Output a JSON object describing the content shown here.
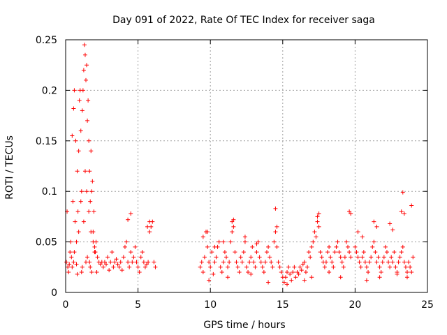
{
  "chart_data": {
    "type": "scatter",
    "title": "Day 091 of 2022, Rate Of TEC Index for receiver saga",
    "xlabel": "GPS time / hours",
    "ylabel": "ROTI / TECUs",
    "xlim": [
      0,
      25
    ],
    "ylim": [
      0,
      0.25
    ],
    "x_ticks": [
      0,
      5,
      10,
      15,
      20,
      25
    ],
    "x_tick_labels": [
      "0",
      "5",
      "10",
      "15",
      "20",
      "25"
    ],
    "y_ticks": [
      0,
      0.05,
      0.1,
      0.15,
      0.2,
      0.25
    ],
    "y_tick_labels": [
      "0",
      "0.05",
      "0.1",
      "0.15",
      "0.2",
      "0.25"
    ],
    "grid": true,
    "marker": "plus",
    "colors": {
      "points": "#ff0000",
      "grid": "#a0a0a0",
      "frame": "#000000"
    },
    "series": [
      {
        "x": [
          0.05,
          0.15,
          0.25,
          0.3,
          0.4,
          0.45,
          0.5,
          0.55,
          0.6,
          0.65,
          0.7,
          0.75,
          0.8,
          0.85,
          0.9,
          0.95,
          1.0,
          1.05,
          1.1,
          1.15,
          1.2,
          1.25,
          1.3,
          1.35,
          1.4,
          1.45,
          1.5,
          1.55,
          1.6,
          1.65,
          1.7,
          1.75,
          1.8,
          1.85,
          1.9,
          1.95,
          2.0,
          2.1,
          2.2,
          2.3,
          2.4,
          2.5,
          2.6,
          2.7,
          2.8,
          2.9,
          3.0,
          3.1,
          3.2,
          3.3,
          3.4,
          3.5,
          3.6,
          3.7,
          3.8,
          3.9,
          4.0,
          4.1,
          4.2,
          4.3,
          4.4,
          4.5,
          4.6,
          4.7,
          4.8,
          4.9,
          5.0,
          5.1,
          5.2,
          5.3,
          5.4,
          5.5,
          5.6,
          5.7,
          5.8,
          5.9,
          6.0,
          6.1,
          6.2,
          0.1,
          0.35,
          0.6,
          0.9,
          1.05,
          1.25,
          1.35,
          1.45,
          1.6,
          1.75,
          1.9,
          2.05,
          0.55,
          0.75,
          1.15,
          1.5,
          1.65,
          1.8,
          2.0,
          0.2,
          0.45,
          0.8,
          1.1,
          1.4,
          1.7,
          2.15,
          4.3,
          4.5,
          5.65,
          5.8
        ],
        "y": [
          0.03,
          0.025,
          0.028,
          0.04,
          0.035,
          0.155,
          0.09,
          0.182,
          0.2,
          0.07,
          0.15,
          0.05,
          0.12,
          0.08,
          0.14,
          0.19,
          0.2,
          0.16,
          0.1,
          0.18,
          0.2,
          0.22,
          0.245,
          0.235,
          0.21,
          0.225,
          0.17,
          0.19,
          0.15,
          0.12,
          0.09,
          0.14,
          0.1,
          0.11,
          0.06,
          0.08,
          0.04,
          0.05,
          0.035,
          0.03,
          0.028,
          0.03,
          0.025,
          0.03,
          0.028,
          0.035,
          0.022,
          0.03,
          0.04,
          0.025,
          0.03,
          0.033,
          0.028,
          0.025,
          0.03,
          0.022,
          0.035,
          0.045,
          0.05,
          0.03,
          0.025,
          0.04,
          0.03,
          0.035,
          0.045,
          0.03,
          0.025,
          0.02,
          0.035,
          0.04,
          0.03,
          0.025,
          0.028,
          0.03,
          0.06,
          0.065,
          0.07,
          0.03,
          0.025,
          0.08,
          0.05,
          0.04,
          0.06,
          0.09,
          0.07,
          0.12,
          0.1,
          0.08,
          0.06,
          0.05,
          0.04,
          0.03,
          0.028,
          0.025,
          0.035,
          0.03,
          0.02,
          0.045,
          0.02,
          0.025,
          0.018,
          0.02,
          0.03,
          0.025,
          0.02,
          0.072,
          0.078,
          0.065,
          0.07
        ]
      },
      {
        "x": [
          9.3,
          9.4,
          9.5,
          9.6,
          9.7,
          9.8,
          9.9,
          10.0,
          10.1,
          10.2,
          10.3,
          10.4,
          10.5,
          10.6,
          10.7,
          10.8,
          10.9,
          11.0,
          11.1,
          11.2,
          11.3,
          11.4,
          11.5,
          11.6,
          11.7,
          11.8,
          11.9,
          12.0,
          12.1,
          12.2,
          12.3,
          12.4,
          12.5,
          12.6,
          12.7,
          12.8,
          12.9,
          13.0,
          13.1,
          13.2,
          13.3,
          13.4,
          13.5,
          13.6,
          13.7,
          13.8,
          13.9,
          14.0,
          14.1,
          14.2,
          14.3,
          14.4,
          14.5,
          14.6,
          14.7,
          14.8,
          14.9,
          15.0,
          15.1,
          15.2,
          15.3,
          15.4,
          15.5,
          15.6,
          15.7,
          15.8,
          15.9,
          16.0,
          16.1,
          16.2,
          16.3,
          16.4,
          16.5,
          16.6,
          16.7,
          16.8,
          16.9,
          17.0,
          17.1,
          17.2,
          17.3,
          17.4,
          17.5,
          17.6,
          17.7,
          17.8,
          17.9,
          18.0,
          18.1,
          18.2,
          18.3,
          18.4,
          18.5,
          18.6,
          18.7,
          18.8,
          18.9,
          19.0,
          19.1,
          19.2,
          19.3,
          19.4,
          19.5,
          19.6,
          19.7,
          9.5,
          9.8,
          10.3,
          10.9,
          11.5,
          11.6,
          12.4,
          13.2,
          14.5,
          14.6,
          17.4,
          17.5,
          19.6,
          19.7,
          9.9,
          11.2,
          12.8,
          14.0,
          15.3,
          16.5,
          17.0,
          18.2,
          19.0
        ],
        "y": [
          0.025,
          0.03,
          0.02,
          0.035,
          0.06,
          0.045,
          0.03,
          0.025,
          0.04,
          0.018,
          0.03,
          0.035,
          0.045,
          0.05,
          0.025,
          0.02,
          0.03,
          0.04,
          0.035,
          0.025,
          0.03,
          0.05,
          0.06,
          0.065,
          0.04,
          0.03,
          0.025,
          0.02,
          0.035,
          0.03,
          0.04,
          0.05,
          0.025,
          0.02,
          0.03,
          0.035,
          0.045,
          0.03,
          0.025,
          0.04,
          0.05,
          0.035,
          0.03,
          0.025,
          0.02,
          0.03,
          0.04,
          0.045,
          0.035,
          0.03,
          0.025,
          0.05,
          0.06,
          0.045,
          0.03,
          0.025,
          0.02,
          0.015,
          0.01,
          0.015,
          0.02,
          0.025,
          0.018,
          0.012,
          0.02,
          0.025,
          0.015,
          0.02,
          0.018,
          0.025,
          0.022,
          0.028,
          0.03,
          0.02,
          0.025,
          0.04,
          0.035,
          0.045,
          0.05,
          0.06,
          0.055,
          0.07,
          0.065,
          0.04,
          0.035,
          0.03,
          0.025,
          0.03,
          0.04,
          0.045,
          0.035,
          0.03,
          0.025,
          0.04,
          0.045,
          0.05,
          0.04,
          0.035,
          0.03,
          0.025,
          0.035,
          0.05,
          0.045,
          0.04,
          0.035,
          0.055,
          0.06,
          0.045,
          0.05,
          0.07,
          0.072,
          0.055,
          0.048,
          0.083,
          0.065,
          0.075,
          0.078,
          0.08,
          0.078,
          0.012,
          0.015,
          0.018,
          0.01,
          0.008,
          0.012,
          0.015,
          0.02,
          0.015
        ]
      },
      {
        "x": [
          20.0,
          20.1,
          20.2,
          20.3,
          20.4,
          20.5,
          20.6,
          20.7,
          20.8,
          20.9,
          21.0,
          21.1,
          21.2,
          21.3,
          21.4,
          21.5,
          21.6,
          21.7,
          21.8,
          21.9,
          22.0,
          22.1,
          22.2,
          22.3,
          22.4,
          22.5,
          22.6,
          22.7,
          22.8,
          22.9,
          23.0,
          23.1,
          23.2,
          23.3,
          23.4,
          23.5,
          23.6,
          23.7,
          23.8,
          23.9,
          24.0,
          20.2,
          20.5,
          21.3,
          21.5,
          22.4,
          22.6,
          23.2,
          23.3,
          23.4,
          23.9,
          20.8,
          21.7,
          22.9,
          23.6
        ],
        "y": [
          0.045,
          0.04,
          0.035,
          0.03,
          0.025,
          0.035,
          0.04,
          0.03,
          0.025,
          0.02,
          0.03,
          0.035,
          0.045,
          0.05,
          0.04,
          0.03,
          0.035,
          0.025,
          0.02,
          0.03,
          0.035,
          0.045,
          0.04,
          0.03,
          0.025,
          0.035,
          0.03,
          0.04,
          0.025,
          0.02,
          0.03,
          0.035,
          0.04,
          0.045,
          0.03,
          0.025,
          0.02,
          0.03,
          0.025,
          0.02,
          0.035,
          0.06,
          0.055,
          0.07,
          0.065,
          0.068,
          0.062,
          0.08,
          0.099,
          0.078,
          0.086,
          0.012,
          0.015,
          0.018,
          0.015
        ]
      }
    ]
  }
}
